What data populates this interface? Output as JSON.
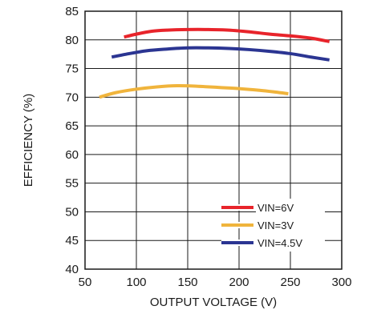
{
  "chart_data": {
    "type": "line",
    "xlabel": "OUTPUT VOLTAGE (V)",
    "ylabel": "EFFICIENCY (%)",
    "xlim": [
      50,
      300
    ],
    "ylim": [
      40,
      85
    ],
    "x_ticks": [
      50,
      100,
      150,
      200,
      250,
      300
    ],
    "y_ticks": [
      40,
      45,
      50,
      55,
      60,
      65,
      70,
      75,
      80,
      85
    ],
    "grid": true,
    "legend_position": "bottom-right",
    "series": [
      {
        "name": "VIN=6V",
        "color": "#e8242b",
        "x": [
          88,
          100,
          115,
          130,
          150,
          170,
          190,
          210,
          230,
          250,
          270,
          288
        ],
        "y": [
          80.5,
          81.0,
          81.5,
          81.7,
          81.8,
          81.8,
          81.7,
          81.4,
          81.0,
          80.7,
          80.3,
          79.7
        ]
      },
      {
        "name": "VIN=3V",
        "color": "#f0b43c",
        "x": [
          64,
          80,
          100,
          120,
          140,
          160,
          180,
          200,
          220,
          235,
          248
        ],
        "y": [
          70.0,
          70.8,
          71.4,
          71.8,
          72.0,
          71.9,
          71.7,
          71.5,
          71.2,
          70.9,
          70.6
        ]
      },
      {
        "name": "VIN=4.5V",
        "color": "#2b3592",
        "x": [
          76,
          90,
          110,
          130,
          150,
          170,
          190,
          210,
          230,
          250,
          270,
          288
        ],
        "y": [
          77.0,
          77.5,
          78.1,
          78.4,
          78.6,
          78.6,
          78.5,
          78.3,
          78.0,
          77.6,
          77.0,
          76.5
        ]
      }
    ]
  }
}
